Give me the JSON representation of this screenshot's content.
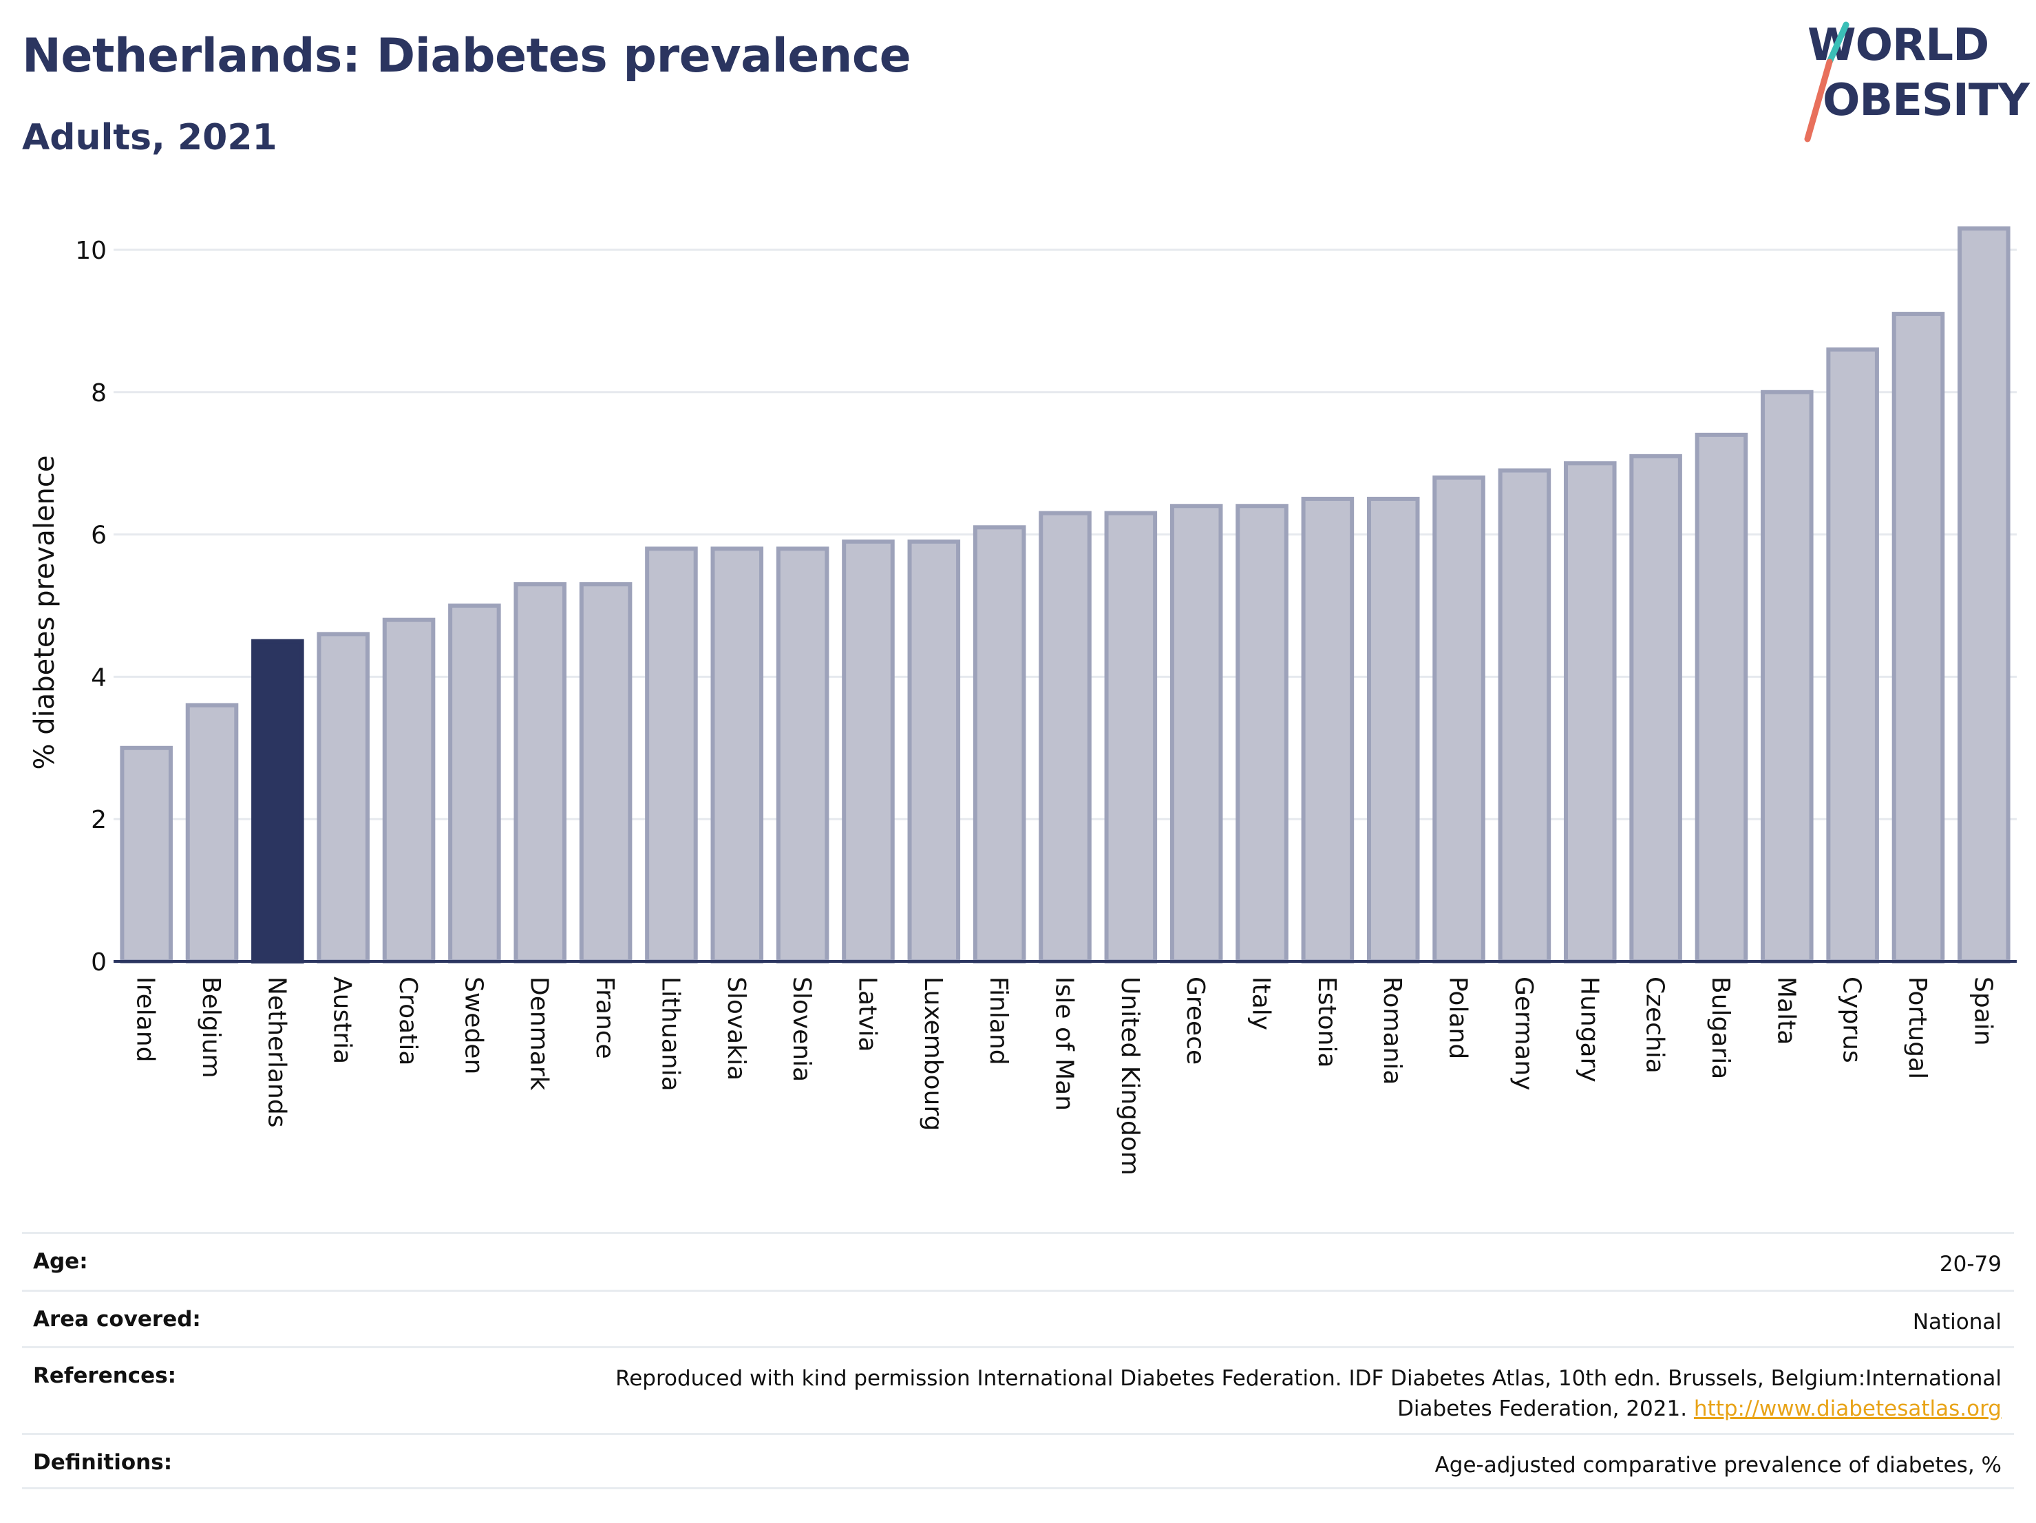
{
  "header": {
    "title": "Netherlands: Diabetes prevalence",
    "subtitle": "Adults, 2021"
  },
  "logo": {
    "line1": "WORLD",
    "line2": "OBESITY",
    "accent_teal": "#3bbfb7",
    "accent_coral": "#e8705c"
  },
  "colors": {
    "bar_default": "#bfc1cf",
    "bar_stroke": "#9da2ba",
    "bar_highlight": "#2b3560",
    "text_dark": "#2b3560",
    "grid": "#e6e9ee"
  },
  "chart_data": {
    "type": "bar",
    "title": "",
    "xlabel": "",
    "ylabel": "% diabetes prevalence",
    "ylim": [
      0,
      10.6
    ],
    "yticks": [
      0,
      2,
      4,
      6,
      8,
      10
    ],
    "grid": true,
    "highlight": "Netherlands",
    "categories": [
      "Ireland",
      "Belgium",
      "Netherlands",
      "Austria",
      "Croatia",
      "Sweden",
      "Denmark",
      "France",
      "Lithuania",
      "Slovakia",
      "Slovenia",
      "Latvia",
      "Luxembourg",
      "Finland",
      "Isle of Man",
      "United Kingdom",
      "Greece",
      "Italy",
      "Estonia",
      "Romania",
      "Poland",
      "Germany",
      "Hungary",
      "Czechia",
      "Bulgaria",
      "Malta",
      "Cyprus",
      "Portugal",
      "Spain"
    ],
    "values": [
      3.0,
      3.6,
      4.5,
      4.6,
      4.8,
      5.0,
      5.3,
      5.3,
      5.8,
      5.8,
      5.8,
      5.9,
      5.9,
      6.1,
      6.3,
      6.3,
      6.4,
      6.4,
      6.5,
      6.5,
      6.8,
      6.9,
      7.0,
      7.1,
      7.4,
      8.0,
      8.6,
      9.1,
      10.3
    ]
  },
  "meta": {
    "rows": [
      {
        "label": "Age:",
        "value": "20-79"
      },
      {
        "label": "Area covered:",
        "value": "National"
      },
      {
        "label": "References:",
        "value": "Reproduced with kind permission International Diabetes Federation.  IDF Diabetes Atlas, 10th edn. Brussels, Belgium:International",
        "value2": "Diabetes Federation, 2021. ",
        "link": "http://www.diabetesatlas.org"
      },
      {
        "label": "Definitions:",
        "value": "Age-adjusted comparative prevalence of diabetes, %"
      }
    ]
  }
}
